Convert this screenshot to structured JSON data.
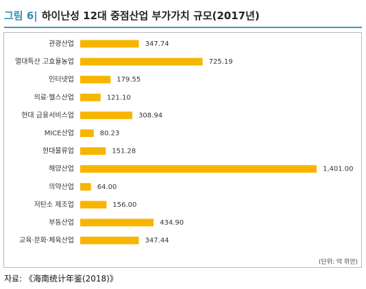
{
  "header": {
    "figure_label": "그림 6|",
    "title": "하이난성 12대 중점산업 부가가치 규모(2017년)"
  },
  "unit_note": "(단위: 억 위안)",
  "source": "자료: 《海南统计年鉴(2018)》",
  "colors": {
    "bar": "#f7b500",
    "accent": "#2f8fb2"
  },
  "chart_data": {
    "type": "bar",
    "orientation": "horizontal",
    "categories": [
      "관광산업",
      "열대특산 고효율농업",
      "인터넷업",
      "의료·헬스산업",
      "현대 금융서비스업",
      "MICE산업",
      "현대물류업",
      "해양산업",
      "의약산업",
      "저탄소 제조업",
      "부동산업",
      "교육·문화·체육산업"
    ],
    "values": [
      347.74,
      725.19,
      179.55,
      121.1,
      308.94,
      80.23,
      151.28,
      1401.0,
      64.0,
      156.0,
      434.9,
      347.44
    ],
    "value_labels": [
      "347.74",
      "725.19",
      "179.55",
      "121.10",
      "308.94",
      "80.23",
      "151.28",
      "1,401.00",
      "64.00",
      "156.00",
      "434.90",
      "347.44"
    ],
    "xlim": [
      0,
      1401.0
    ],
    "grid": false,
    "legend": "none"
  }
}
